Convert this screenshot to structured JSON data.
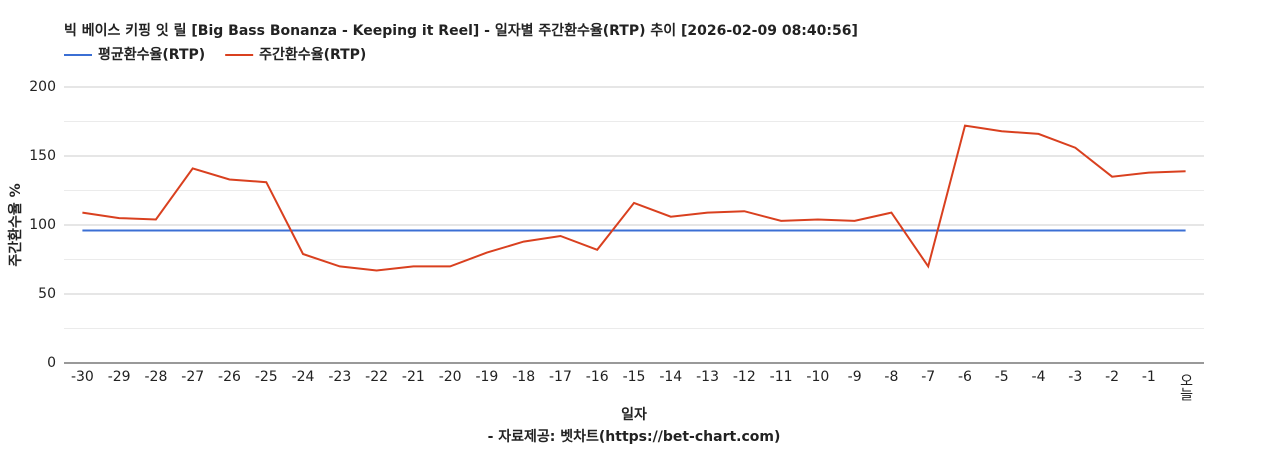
{
  "chart_data": {
    "type": "line",
    "title": "빅 베이스 키핑 잇 릴 [Big Bass Bonanza - Keeping it Reel] - 일자별 주간환수율(RTP) 추이 [2026-02-09 08:40:56]",
    "x_label": "일자",
    "y_label": "주간환수율 %",
    "footer": "- 자료제공: 벳차트(https://bet-chart.com)",
    "categories": [
      "-30",
      "-29",
      "-28",
      "-27",
      "-26",
      "-25",
      "-24",
      "-23",
      "-22",
      "-21",
      "-20",
      "-19",
      "-18",
      "-17",
      "-16",
      "-15",
      "-14",
      "-13",
      "-12",
      "-11",
      "-10",
      "-9",
      "-8",
      "-7",
      "-6",
      "-5",
      "-4",
      "-3",
      "-2",
      "-1",
      "오늘"
    ],
    "series": [
      {
        "name": "평균환수율(RTP)",
        "color": "#3b6fd4",
        "values": [
          96,
          96,
          96,
          96,
          96,
          96,
          96,
          96,
          96,
          96,
          96,
          96,
          96,
          96,
          96,
          96,
          96,
          96,
          96,
          96,
          96,
          96,
          96,
          96,
          96,
          96,
          96,
          96,
          96,
          96,
          96
        ]
      },
      {
        "name": "주간환수율(RTP)",
        "color": "#d9401f",
        "values": [
          109,
          105,
          104,
          141,
          133,
          131,
          79,
          70,
          67,
          70,
          70,
          80,
          88,
          92,
          82,
          116,
          106,
          109,
          110,
          103,
          104,
          103,
          109,
          70,
          172,
          168,
          166,
          156,
          135,
          138,
          139
        ]
      }
    ],
    "ylim": [
      0,
      200
    ],
    "yticks": [
      0,
      50,
      100,
      150,
      200
    ],
    "minor_yticks": [
      25,
      75,
      125,
      175
    ],
    "grid": true
  }
}
